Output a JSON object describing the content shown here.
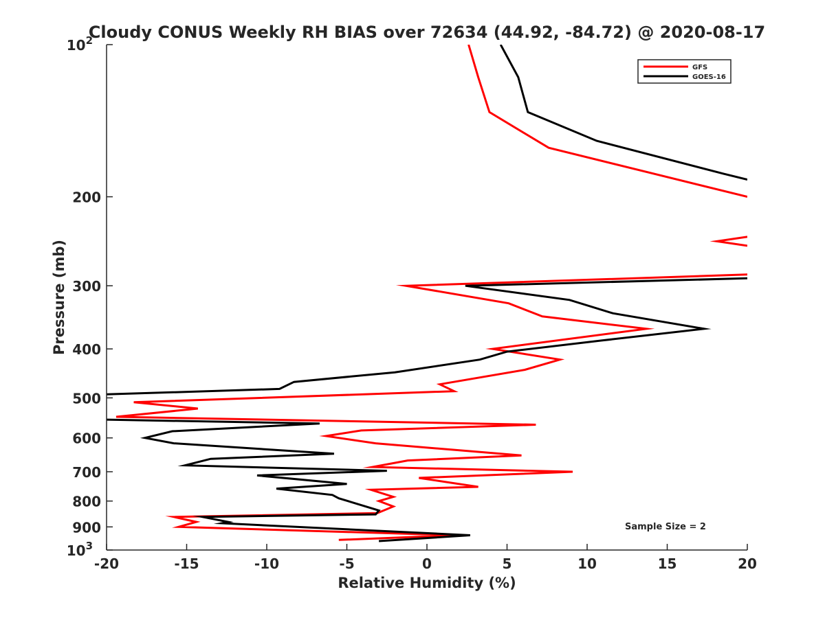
{
  "chart_data": {
    "type": "line",
    "title": "Cloudy CONUS Weekly RH BIAS over 72634 (44.92, -84.72) @ 2020-08-17",
    "xlabel": "Relative Humidity (%)",
    "ylabel": "Pressure (mb)",
    "xlim": [
      -20,
      20
    ],
    "ylim": [
      100,
      1000
    ],
    "y_scale": "log",
    "y_reversed": true,
    "grid": false,
    "legend_position": "top-right",
    "annotation": "Sample Size = 2",
    "x_ticks": [
      "-20",
      "-15",
      "-10",
      "-5",
      "0",
      "5",
      "10",
      "15",
      "20"
    ],
    "y_ticks": [
      {
        "value": 100,
        "base": "10",
        "exp": "2"
      },
      {
        "value": 200,
        "base": "200",
        "exp": ""
      },
      {
        "value": 300,
        "base": "300",
        "exp": ""
      },
      {
        "value": 400,
        "base": "400",
        "exp": ""
      },
      {
        "value": 500,
        "base": "500",
        "exp": ""
      },
      {
        "value": 600,
        "base": "600",
        "exp": ""
      },
      {
        "value": 700,
        "base": "700",
        "exp": ""
      },
      {
        "value": 800,
        "base": "800",
        "exp": ""
      },
      {
        "value": 900,
        "base": "900",
        "exp": ""
      },
      {
        "value": 1000,
        "base": "10",
        "exp": "3"
      }
    ],
    "series": [
      {
        "name": "GFS",
        "color": "#ff0000",
        "segments": [
          [
            {
              "x": 2.6,
              "y": 100
            },
            {
              "x": 3.2,
              "y": 116
            },
            {
              "x": 3.9,
              "y": 136
            },
            {
              "x": 7.6,
              "y": 160
            },
            {
              "x": 20.0,
              "y": 200
            }
          ],
          [
            {
              "x": 20.0,
              "y": 240
            },
            {
              "x": 18.1,
              "y": 245
            },
            {
              "x": 20.0,
              "y": 250
            }
          ],
          [
            {
              "x": 20.0,
              "y": 285
            },
            {
              "x": -1.3,
              "y": 300
            },
            {
              "x": 5.1,
              "y": 325
            },
            {
              "x": 7.2,
              "y": 345
            },
            {
              "x": 13.7,
              "y": 365
            },
            {
              "x": 4.1,
              "y": 400
            },
            {
              "x": 8.3,
              "y": 420
            },
            {
              "x": 6.1,
              "y": 440
            },
            {
              "x": 0.8,
              "y": 470
            },
            {
              "x": 1.7,
              "y": 485
            },
            {
              "x": -18.3,
              "y": 510
            },
            {
              "x": -14.3,
              "y": 525
            },
            {
              "x": -19.4,
              "y": 545
            },
            {
              "x": 6.8,
              "y": 565
            },
            {
              "x": -4.1,
              "y": 580
            },
            {
              "x": -6.3,
              "y": 595
            },
            {
              "x": -3.2,
              "y": 615
            },
            {
              "x": 5.9,
              "y": 650
            },
            {
              "x": -1.2,
              "y": 665
            },
            {
              "x": -3.4,
              "y": 685
            },
            {
              "x": 9.1,
              "y": 700
            },
            {
              "x": -0.5,
              "y": 720
            },
            {
              "x": 3.2,
              "y": 750
            },
            {
              "x": -3.5,
              "y": 760
            },
            {
              "x": -2.1,
              "y": 785
            },
            {
              "x": -3.0,
              "y": 800
            },
            {
              "x": -2.1,
              "y": 820
            },
            {
              "x": -3.1,
              "y": 845
            },
            {
              "x": -15.8,
              "y": 860
            },
            {
              "x": -14.4,
              "y": 880
            },
            {
              "x": -15.5,
              "y": 900
            },
            {
              "x": 1.8,
              "y": 935
            },
            {
              "x": -5.5,
              "y": 955
            }
          ]
        ]
      },
      {
        "name": "GOES-16",
        "color": "#000000",
        "segments": [
          [
            {
              "x": 4.6,
              "y": 100
            },
            {
              "x": 5.7,
              "y": 116
            },
            {
              "x": 6.3,
              "y": 136
            },
            {
              "x": 10.6,
              "y": 155
            },
            {
              "x": 18.5,
              "y": 180
            },
            {
              "x": 20.0,
              "y": 185
            }
          ],
          [
            {
              "x": 20.0,
              "y": 290
            },
            {
              "x": 2.4,
              "y": 300
            },
            {
              "x": 8.9,
              "y": 320
            },
            {
              "x": 11.6,
              "y": 340
            },
            {
              "x": 17.3,
              "y": 365
            },
            {
              "x": 10.9,
              "y": 385
            },
            {
              "x": 5.0,
              "y": 405
            },
            {
              "x": 3.3,
              "y": 420
            },
            {
              "x": -2.0,
              "y": 445
            },
            {
              "x": -8.3,
              "y": 465
            },
            {
              "x": -9.2,
              "y": 480
            },
            {
              "x": -20.0,
              "y": 492
            }
          ],
          [
            {
              "x": -20.0,
              "y": 552
            },
            {
              "x": -6.7,
              "y": 562
            },
            {
              "x": -15.9,
              "y": 582
            },
            {
              "x": -17.6,
              "y": 600
            },
            {
              "x": -15.8,
              "y": 615
            },
            {
              "x": -5.8,
              "y": 645
            },
            {
              "x": -13.5,
              "y": 660
            },
            {
              "x": -15.1,
              "y": 680
            },
            {
              "x": -2.5,
              "y": 697
            },
            {
              "x": -10.6,
              "y": 712
            },
            {
              "x": -5.0,
              "y": 740
            },
            {
              "x": -9.4,
              "y": 756
            },
            {
              "x": -5.9,
              "y": 778
            },
            {
              "x": -5.5,
              "y": 790
            },
            {
              "x": -3.0,
              "y": 835
            },
            {
              "x": -3.2,
              "y": 850
            },
            {
              "x": -14.0,
              "y": 860
            },
            {
              "x": -12.4,
              "y": 880
            },
            {
              "x": -12.8,
              "y": 885
            },
            {
              "x": 2.7,
              "y": 935
            },
            {
              "x": -3.0,
              "y": 960
            }
          ]
        ]
      }
    ]
  }
}
